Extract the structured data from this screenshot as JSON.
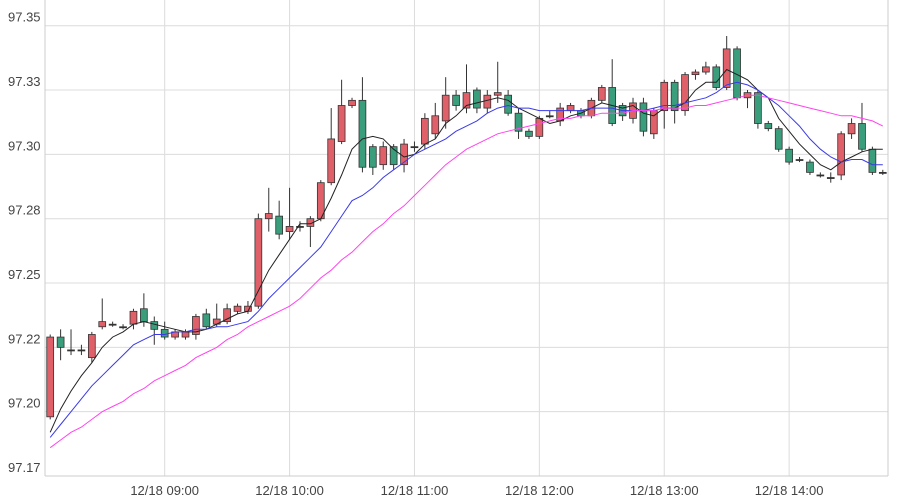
{
  "chart_data": {
    "type": "candlestick",
    "categories": [
      null,
      null,
      null,
      null,
      null,
      null,
      null,
      null,
      null,
      null,
      null,
      "12/18 09:00",
      null,
      null,
      null,
      null,
      null,
      null,
      null,
      null,
      null,
      null,
      null,
      "12/18 10:00",
      null,
      null,
      null,
      null,
      null,
      null,
      null,
      null,
      null,
      null,
      null,
      "12/18 11:00",
      null,
      null,
      null,
      null,
      null,
      null,
      null,
      null,
      null,
      null,
      null,
      "12/18 12:00",
      null,
      null,
      null,
      null,
      null,
      null,
      null,
      null,
      null,
      null,
      null,
      "12/18 13:00",
      null,
      null,
      null,
      null,
      null,
      null,
      null,
      null,
      null,
      null,
      null,
      "12/18 14:00",
      null,
      null,
      null,
      null,
      null,
      null,
      null,
      null,
      null
    ],
    "open": [
      97.198,
      97.229,
      97.224,
      97.224,
      97.221,
      97.233,
      97.234,
      97.233,
      97.234,
      97.24,
      97.235,
      97.232,
      97.229,
      97.229,
      97.23,
      97.238,
      97.234,
      97.235,
      97.239,
      97.239,
      97.241,
      97.275,
      97.276,
      97.27,
      97.272,
      97.272,
      97.275,
      97.289,
      97.305,
      97.319,
      97.321,
      97.303,
      97.296,
      97.303,
      97.296,
      97.303,
      97.304,
      97.308,
      97.313,
      97.323,
      97.318,
      97.325,
      97.318,
      97.323,
      97.323,
      97.316,
      97.309,
      97.307,
      97.315,
      97.313,
      97.317,
      97.317,
      97.315,
      97.321,
      97.326,
      97.319,
      97.314,
      97.32,
      97.308,
      97.317,
      97.328,
      97.317,
      97.331,
      97.332,
      97.334,
      97.326,
      97.341,
      97.322,
      97.324,
      97.312,
      97.31,
      97.302,
      97.298,
      97.297,
      97.292,
      97.291,
      97.292,
      97.308,
      97.312,
      97.302,
      97.293
    ],
    "high": [
      97.23,
      97.232,
      97.232,
      97.226,
      97.231,
      97.244,
      97.235,
      97.234,
      97.24,
      97.246,
      97.237,
      97.235,
      97.232,
      97.232,
      97.238,
      97.24,
      97.242,
      97.242,
      97.242,
      97.243,
      97.277,
      97.287,
      97.282,
      97.287,
      97.274,
      97.276,
      97.29,
      97.318,
      97.329,
      97.322,
      97.33,
      97.304,
      97.305,
      97.304,
      97.306,
      97.305,
      97.316,
      97.32,
      97.33,
      97.325,
      97.335,
      97.326,
      97.325,
      97.336,
      97.325,
      97.318,
      97.31,
      97.315,
      97.317,
      97.32,
      97.32,
      97.318,
      97.322,
      97.327,
      97.337,
      97.32,
      97.322,
      97.322,
      97.318,
      97.329,
      97.329,
      97.332,
      97.333,
      97.336,
      97.335,
      97.346,
      97.342,
      97.325,
      97.325,
      97.313,
      97.311,
      97.303,
      97.299,
      97.298,
      97.293,
      97.293,
      97.309,
      97.314,
      97.32,
      97.303,
      97.294
    ],
    "low": [
      97.197,
      97.22,
      97.222,
      97.222,
      97.219,
      97.232,
      97.233,
      97.232,
      97.232,
      97.233,
      97.226,
      97.228,
      97.228,
      97.228,
      97.228,
      97.232,
      97.233,
      97.234,
      97.238,
      97.238,
      97.24,
      97.27,
      97.267,
      97.267,
      97.27,
      97.264,
      97.274,
      97.288,
      97.304,
      97.318,
      97.293,
      97.292,
      97.294,
      97.294,
      97.293,
      97.301,
      97.302,
      97.306,
      97.31,
      97.317,
      97.316,
      97.316,
      97.316,
      97.32,
      97.315,
      97.306,
      97.306,
      97.306,
      97.314,
      97.311,
      97.316,
      97.314,
      97.314,
      97.32,
      97.311,
      97.313,
      97.312,
      97.307,
      97.306,
      97.31,
      97.312,
      97.315,
      97.329,
      97.331,
      97.325,
      97.325,
      97.321,
      97.318,
      97.31,
      97.309,
      97.301,
      97.296,
      97.297,
      97.292,
      97.291,
      97.289,
      97.29,
      97.306,
      97.301,
      97.292,
      97.292
    ],
    "close": [
      97.229,
      97.225,
      97.224,
      97.224,
      97.23,
      97.235,
      97.234,
      97.233,
      97.239,
      97.235,
      97.232,
      97.229,
      97.231,
      97.231,
      97.237,
      97.233,
      97.236,
      97.24,
      97.241,
      97.241,
      97.275,
      97.277,
      97.269,
      97.272,
      97.272,
      97.275,
      97.289,
      97.306,
      97.319,
      97.321,
      97.295,
      97.295,
      97.303,
      97.296,
      97.304,
      97.303,
      97.314,
      97.315,
      97.323,
      97.319,
      97.324,
      97.318,
      97.323,
      97.324,
      97.316,
      97.309,
      97.307,
      97.314,
      97.315,
      97.318,
      97.319,
      97.315,
      97.321,
      97.326,
      97.312,
      97.315,
      97.32,
      97.309,
      97.317,
      97.328,
      97.317,
      97.331,
      97.332,
      97.334,
      97.326,
      97.341,
      97.322,
      97.324,
      97.312,
      97.31,
      97.302,
      97.297,
      97.298,
      97.293,
      97.292,
      97.291,
      97.308,
      97.312,
      97.302,
      97.293,
      97.293
    ],
    "up_color": "#e0606a",
    "down_color": "#3a9e7c",
    "series": [
      {
        "color": "#222222",
        "values": [
          97.192,
          97.201,
          97.208,
          97.214,
          97.219,
          97.225,
          97.229,
          97.231,
          97.234,
          97.235,
          97.234,
          97.233,
          97.232,
          97.231,
          97.231,
          97.232,
          97.234,
          97.236,
          97.238,
          97.239,
          97.247,
          97.255,
          97.261,
          97.267,
          97.273,
          97.273,
          97.275,
          97.283,
          97.292,
          97.302,
          97.306,
          97.307,
          97.306,
          97.302,
          97.299,
          97.3,
          97.304,
          97.306,
          97.312,
          97.315,
          97.319,
          97.32,
          97.321,
          97.322,
          97.321,
          97.318,
          97.316,
          97.314,
          97.312,
          97.313,
          97.315,
          97.316,
          97.318,
          97.32,
          97.319,
          97.318,
          97.319,
          97.316,
          97.315,
          97.318,
          97.318,
          97.32,
          97.325,
          97.328,
          97.328,
          97.333,
          97.331,
          97.329,
          97.325,
          97.322,
          97.314,
          97.309,
          97.304,
          97.3,
          97.296,
          97.294,
          97.297,
          97.299,
          97.301,
          97.302,
          97.302
        ]
      },
      {
        "color": "#3a3ae8",
        "values": [
          97.19,
          97.195,
          97.2,
          97.205,
          97.21,
          97.214,
          97.218,
          97.222,
          97.226,
          97.228,
          97.23,
          97.23,
          97.231,
          97.231,
          97.232,
          97.232,
          97.233,
          97.233,
          97.234,
          97.235,
          97.239,
          97.244,
          97.248,
          97.252,
          97.256,
          97.26,
          97.264,
          97.27,
          97.276,
          97.282,
          97.284,
          97.287,
          97.291,
          97.294,
          97.297,
          97.3,
          97.302,
          97.304,
          97.306,
          97.309,
          97.311,
          97.313,
          97.316,
          97.318,
          97.319,
          97.318,
          97.318,
          97.317,
          97.317,
          97.317,
          97.317,
          97.317,
          97.318,
          97.318,
          97.318,
          97.317,
          97.317,
          97.317,
          97.318,
          97.319,
          97.319,
          97.32,
          97.321,
          97.322,
          97.324,
          97.327,
          97.328,
          97.327,
          97.325,
          97.322,
          97.319,
          97.315,
          97.311,
          97.306,
          97.302,
          97.299,
          97.297,
          97.298,
          97.298,
          97.296,
          97.296
        ]
      },
      {
        "color": "#ff44ee",
        "values": [
          97.186,
          97.189,
          97.192,
          97.194,
          97.197,
          97.2,
          97.202,
          97.204,
          97.207,
          97.209,
          97.212,
          97.214,
          97.216,
          97.218,
          97.221,
          97.223,
          97.225,
          97.228,
          97.23,
          97.233,
          97.235,
          97.237,
          97.239,
          97.241,
          97.244,
          97.248,
          97.252,
          97.255,
          97.259,
          97.262,
          97.266,
          97.27,
          97.273,
          97.277,
          97.28,
          97.284,
          97.288,
          97.292,
          97.296,
          97.299,
          97.302,
          97.304,
          97.306,
          97.308,
          97.309,
          97.31,
          97.311,
          97.312,
          97.313,
          97.314,
          97.314,
          97.315,
          97.315,
          97.316,
          97.316,
          97.316,
          97.317,
          97.317,
          97.317,
          97.318,
          97.318,
          97.318,
          97.319,
          97.319,
          97.32,
          97.321,
          97.322,
          97.323,
          97.323,
          97.322,
          97.321,
          97.32,
          97.319,
          97.318,
          97.317,
          97.316,
          97.315,
          97.315,
          97.314,
          97.313,
          97.311
        ]
      }
    ],
    "ylim": [
      97.175,
      97.36
    ],
    "yticks": [
      {
        "value": 97.175,
        "label": "97.17"
      },
      {
        "value": 97.2,
        "label": "97.20"
      },
      {
        "value": 97.225,
        "label": "97.22"
      },
      {
        "value": 97.25,
        "label": "97.25"
      },
      {
        "value": 97.275,
        "label": "97.28"
      },
      {
        "value": 97.3,
        "label": "97.30"
      },
      {
        "value": 97.325,
        "label": "97.33"
      },
      {
        "value": 97.35,
        "label": "97.35"
      }
    ],
    "grid": true
  }
}
